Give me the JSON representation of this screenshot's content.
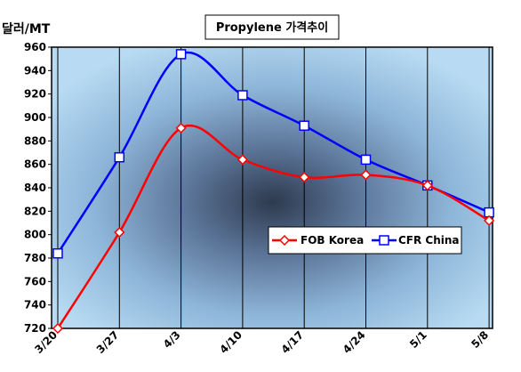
{
  "chart_data": {
    "type": "line",
    "title": "Propylene 가격추이",
    "ylabel": "달러/MT",
    "categories": [
      "3/20",
      "3/27",
      "4/3",
      "4/10",
      "4/17",
      "4/24",
      "5/1",
      "5/8"
    ],
    "ylim": [
      720,
      960
    ],
    "yticks": [
      720,
      740,
      760,
      780,
      800,
      820,
      840,
      860,
      880,
      900,
      920,
      940,
      960
    ],
    "grid": "vertical",
    "legend_position": "lower-right",
    "series": [
      {
        "name": "FOB Korea",
        "values": [
          720,
          802,
          891,
          864,
          849,
          851,
          842,
          812
        ],
        "color": "#ff0000",
        "marker": "diamond"
      },
      {
        "name": "CFR China",
        "values": [
          784,
          866,
          954,
          919,
          893,
          864,
          842,
          819
        ],
        "color": "#0000ff",
        "marker": "square"
      }
    ]
  }
}
